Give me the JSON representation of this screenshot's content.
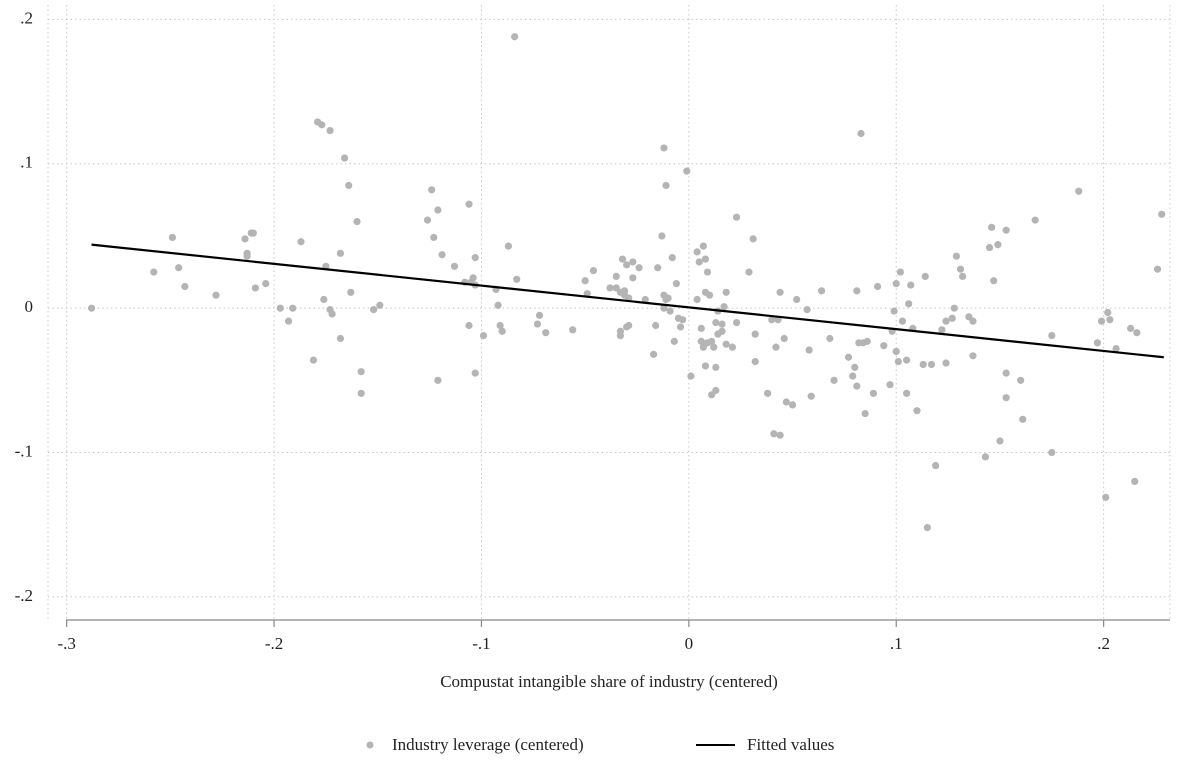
{
  "chart_data": {
    "type": "scatter",
    "x_label": "Compustat intangible share of industry (centered)",
    "xlim": [
      -0.309,
      0.232
    ],
    "ylim": [
      -0.216,
      0.21
    ],
    "xticks": [
      {
        "value": -0.3,
        "label": "-.3"
      },
      {
        "value": -0.2,
        "label": "-.2"
      },
      {
        "value": -0.1,
        "label": "-.1"
      },
      0,
      {
        "value": 0.1,
        "label": ".1"
      },
      {
        "value": 0.2,
        "label": ".2"
      }
    ],
    "yticks": [
      {
        "value": -0.2,
        "label": "-.2"
      },
      {
        "value": -0.1,
        "label": "-.1"
      },
      0,
      {
        "value": 0.1,
        "label": ".1"
      },
      {
        "value": 0.2,
        "label": ".2"
      }
    ],
    "grid": true,
    "series": [
      {
        "name": "Industry leverage (centered)",
        "type": "scatter",
        "color": "#b4b4b4",
        "x": [
          -0.288,
          -0.258,
          -0.249,
          -0.246,
          -0.243,
          -0.228,
          -0.214,
          -0.213,
          -0.213,
          -0.211,
          -0.21,
          -0.209,
          -0.204,
          -0.197,
          -0.193,
          -0.191,
          -0.187,
          -0.181,
          -0.179,
          -0.177,
          -0.176,
          -0.175,
          -0.173,
          -0.173,
          -0.172,
          -0.168,
          -0.168,
          -0.166,
          -0.164,
          -0.163,
          -0.16,
          -0.158,
          -0.158,
          -0.152,
          -0.149,
          -0.126,
          -0.124,
          -0.123,
          -0.121,
          -0.121,
          -0.119,
          -0.113,
          -0.108,
          -0.106,
          -0.106,
          -0.105,
          -0.104,
          -0.103,
          -0.103,
          -0.103,
          -0.099,
          -0.093,
          -0.092,
          -0.091,
          -0.09,
          -0.087,
          -0.084,
          -0.083,
          -0.073,
          -0.072,
          -0.069,
          -0.056,
          -0.05,
          -0.049,
          -0.046,
          -0.038,
          -0.035,
          -0.035,
          -0.033,
          -0.033,
          -0.033,
          -0.032,
          -0.031,
          -0.031,
          -0.03,
          -0.03,
          -0.029,
          -0.029,
          -0.027,
          -0.027,
          -0.024,
          -0.021,
          -0.017,
          -0.016,
          -0.015,
          -0.013,
          -0.012,
          -0.012,
          -0.012,
          -0.011,
          -0.011,
          -0.01,
          -0.009,
          -0.008,
          -0.007,
          -0.006,
          -0.005,
          -0.004,
          -0.003,
          -0.001,
          0.001,
          0.004,
          0.004,
          0.005,
          0.006,
          0.006,
          0.007,
          0.007,
          0.008,
          0.008,
          0.008,
          0.009,
          0.009,
          0.01,
          0.011,
          0.011,
          0.012,
          0.013,
          0.013,
          0.013,
          0.014,
          0.014,
          0.016,
          0.016,
          0.017,
          0.018,
          0.018,
          0.021,
          0.023,
          0.023,
          0.029,
          0.031,
          0.032,
          0.032,
          0.038,
          0.04,
          0.041,
          0.042,
          0.043,
          0.044,
          0.044,
          0.046,
          0.047,
          0.05,
          0.052,
          0.057,
          0.058,
          0.059,
          0.064,
          0.068,
          0.07,
          0.077,
          0.079,
          0.08,
          0.081,
          0.081,
          0.082,
          0.083,
          0.084,
          0.085,
          0.086,
          0.089,
          0.091,
          0.094,
          0.097,
          0.098,
          0.099,
          0.1,
          0.1,
          0.101,
          0.102,
          0.103,
          0.105,
          0.105,
          0.106,
          0.107,
          0.108,
          0.11,
          0.113,
          0.114,
          0.115,
          0.117,
          0.119,
          0.122,
          0.124,
          0.124,
          0.127,
          0.128,
          0.129,
          0.131,
          0.132,
          0.135,
          0.137,
          0.137,
          0.143,
          0.145,
          0.146,
          0.147,
          0.149,
          0.15,
          0.153,
          0.153,
          0.153,
          0.16,
          0.161,
          0.167,
          0.175,
          0.175,
          0.188,
          0.197,
          0.199,
          0.201,
          0.202,
          0.203,
          0.206,
          0.213,
          0.215,
          0.216,
          0.226,
          0.228
        ],
        "values": [
          0,
          0.025,
          0.049,
          0.028,
          0.015,
          0.009,
          0.048,
          0.038,
          0.036,
          0.052,
          0.052,
          0.014,
          0.017,
          0,
          -0.009,
          0,
          0.046,
          -0.036,
          0.129,
          0.127,
          0.006,
          0.029,
          0.123,
          -0.001,
          -0.004,
          -0.021,
          0.038,
          0.104,
          0.085,
          0.011,
          0.06,
          -0.044,
          -0.059,
          -0.001,
          0.002,
          0.061,
          0.082,
          0.049,
          -0.05,
          0.068,
          0.037,
          0.029,
          0.018,
          0.072,
          -0.012,
          0.018,
          0.021,
          0.035,
          -0.045,
          0.016,
          -0.019,
          0.013,
          0.002,
          -0.012,
          -0.016,
          0.043,
          0.188,
          0.02,
          -0.011,
          -0.005,
          -0.017,
          -0.015,
          0.019,
          0.01,
          0.026,
          0.014,
          0.022,
          0.014,
          0.011,
          -0.016,
          -0.019,
          0.034,
          0.012,
          0.009,
          -0.013,
          0.03,
          0.007,
          -0.012,
          0.032,
          0.021,
          0.028,
          0.006,
          -0.032,
          -0.012,
          0.028,
          0.05,
          0.111,
          0,
          0.009,
          0.085,
          0.006,
          0.007,
          -0.002,
          0.035,
          -0.023,
          0.017,
          -0.007,
          -0.013,
          -0.008,
          0.095,
          -0.047,
          0.039,
          0.006,
          0.032,
          -0.014,
          -0.023,
          -0.027,
          0.043,
          0.011,
          0.034,
          -0.04,
          0.025,
          -0.024,
          0.009,
          -0.023,
          -0.06,
          -0.027,
          -0.041,
          -0.057,
          -0.01,
          -0.018,
          -0.002,
          -0.016,
          -0.011,
          0.001,
          -0.025,
          0.011,
          -0.027,
          -0.01,
          0.063,
          0.025,
          0.048,
          -0.018,
          -0.037,
          -0.059,
          -0.008,
          -0.087,
          -0.027,
          -0.008,
          -0.088,
          0.011,
          -0.021,
          -0.065,
          -0.067,
          0.006,
          -0.001,
          -0.029,
          -0.061,
          0.012,
          -0.021,
          -0.05,
          -0.034,
          -0.047,
          -0.041,
          0.012,
          -0.054,
          -0.024,
          0.121,
          -0.024,
          -0.073,
          -0.023,
          -0.059,
          0.015,
          -0.026,
          -0.053,
          -0.016,
          -0.002,
          0.017,
          -0.03,
          -0.037,
          0.025,
          -0.009,
          -0.036,
          -0.059,
          0.003,
          0.016,
          -0.014,
          -0.071,
          -0.039,
          0.022,
          -0.152,
          -0.039,
          -0.109,
          -0.015,
          -0.038,
          -0.009,
          -0.007,
          0,
          0.036,
          0.027,
          0.022,
          -0.006,
          -0.033,
          -0.009,
          -0.103,
          0.042,
          0.056,
          0.019,
          0.044,
          -0.092,
          0.054,
          -0.045,
          -0.062,
          -0.05,
          -0.077,
          0.061,
          -0.019,
          -0.1,
          0.081,
          -0.024,
          -0.009,
          -0.131,
          -0.003,
          -0.008,
          -0.028,
          -0.014,
          -0.12,
          -0.017,
          0.027,
          0.065
        ]
      },
      {
        "name": "Fitted values",
        "type": "line",
        "color": "#000000",
        "x": [
          -0.288,
          0.229
        ],
        "values": [
          0.044,
          -0.034
        ]
      }
    ]
  }
}
